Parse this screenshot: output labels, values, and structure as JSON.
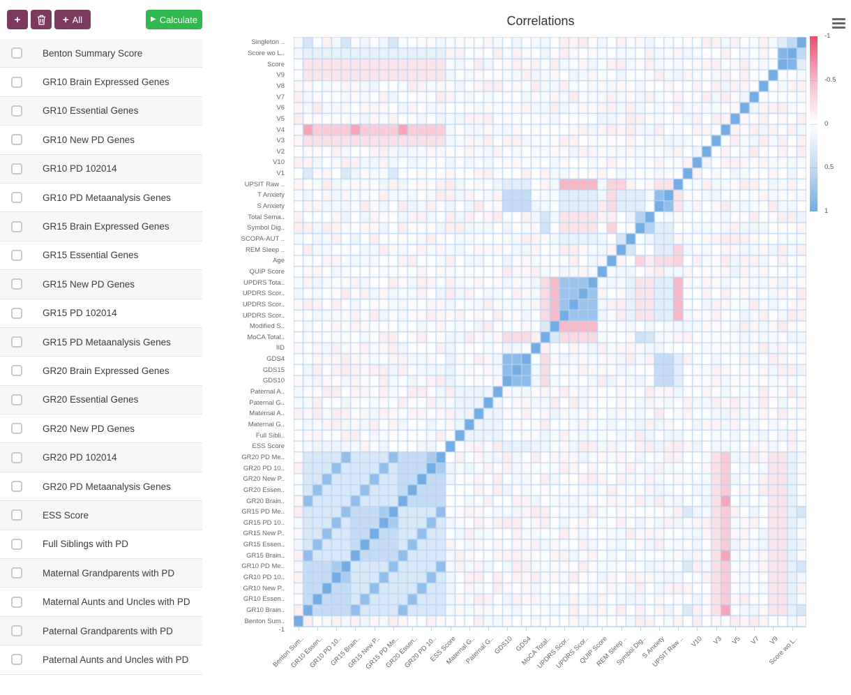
{
  "toolbar": {
    "add_label": "+",
    "add_all_plus": "+",
    "add_all_label": "All",
    "play_icon": "▶",
    "calculate_label": "Calculate",
    "button_color": "#7c3a5e",
    "calculate_color": "#2fb94e"
  },
  "sidebar": {
    "items": [
      {
        "label": "Benton Summary Score",
        "checked": false
      },
      {
        "label": "GR10 Brain Expressed Genes",
        "checked": false
      },
      {
        "label": "GR10 Essential Genes",
        "checked": false
      },
      {
        "label": "GR10 New PD Genes",
        "checked": false
      },
      {
        "label": "GR10 PD 102014",
        "checked": false
      },
      {
        "label": "GR10 PD Metaanalysis Genes",
        "checked": false
      },
      {
        "label": "GR15 Brain Expressed Genes",
        "checked": false
      },
      {
        "label": "GR15 Essential Genes",
        "checked": false
      },
      {
        "label": "GR15 New PD Genes",
        "checked": false
      },
      {
        "label": "GR15 PD 102014",
        "checked": false
      },
      {
        "label": "GR15 PD Metaanalysis Genes",
        "checked": false
      },
      {
        "label": "GR20 Brain Expressed Genes",
        "checked": false
      },
      {
        "label": "GR20 Essential Genes",
        "checked": false
      },
      {
        "label": "GR20 New PD Genes",
        "checked": false
      },
      {
        "label": "GR20 PD 102014",
        "checked": false
      },
      {
        "label": "GR20 PD Metaanalysis Genes",
        "checked": false
      },
      {
        "label": "ESS Score",
        "checked": false
      },
      {
        "label": "Full Siblings with PD",
        "checked": false
      },
      {
        "label": "Maternal Grandparents with PD",
        "checked": false
      },
      {
        "label": "Maternal Aunts and Uncles with PD",
        "checked": false
      },
      {
        "label": "Paternal Grandparents with PD",
        "checked": false
      },
      {
        "label": "Paternal Aunts and Uncles with PD",
        "checked": false
      }
    ]
  },
  "chart": {
    "title": "Correlations",
    "menu_icon": "hamburger-icon",
    "axis_end_label": "-1",
    "colorbar": {
      "labels": [
        "-1",
        "-0.5",
        "0",
        "0.5",
        "1"
      ]
    }
  },
  "chart_data": {
    "type": "heatmap",
    "title": "Correlations",
    "note": "54x54 symmetric correlation matrix; rows top-to-bottom are the reverse of columns left-to-right; diagonal runs from top-right to bottom-left",
    "variables_in_column_order": [
      "Benton Sum..",
      "GR10 Brain..",
      "GR10 Essen..",
      "GR10 New P..",
      "GR10 PD 10..",
      "GR10 PD Me..",
      "GR15 Brain..",
      "GR15 Essen..",
      "GR15 New P..",
      "GR15 PD 10..",
      "GR15 PD Me..",
      "GR20 Brain..",
      "GR20 Essen..",
      "GR20 New P..",
      "GR20 PD 10..",
      "GR20 PD Me..",
      "ESS Score",
      "Full Sibli..",
      "Maternal G..",
      "Maternal A..",
      "Paternal G..",
      "Paternal A..",
      "GDS10",
      "GDS15",
      "GDS4",
      "IID",
      "MoCA Total..",
      "Modified S..",
      "UPDRS Scor..",
      "UPDRS Scor..",
      "UPDRS Scor..",
      "UPDRS Tota..",
      "QUIP Score",
      "Age",
      "REM Sleep ..",
      "SCOPA-AUT ..",
      "Symbol Dig..",
      "Total Sema..",
      "S Anxiety",
      "T Anxiety",
      "UPSIT Raw ..",
      "V1",
      "V10",
      "V2",
      "V3",
      "V4",
      "V5",
      "V6",
      "V7",
      "V8",
      "V9",
      "Score",
      "Score wo L..",
      "Singleton .."
    ],
    "x_tick_every": 2,
    "colorscale": {
      "min": -1,
      "max": 1,
      "min_color": "#ec4a72",
      "zero_color": "#ffffff",
      "max_color": "#74ace4",
      "legend_top_value": -1,
      "legend_bottom_value": 1
    },
    "grid_color": "#b9d3ee",
    "diagonal_value": 1,
    "noise_amplitude": 0.11,
    "structures": [
      {
        "name": "gene-sets-base",
        "rows": [
          2,
          16
        ],
        "cols": [
          2,
          16
        ],
        "v": 0.28
      },
      {
        "name": "gr10-group",
        "rows": [
          2,
          6
        ],
        "cols": [
          2,
          6
        ],
        "v": 0.42
      },
      {
        "name": "gr15-group",
        "rows": [
          7,
          11
        ],
        "cols": [
          7,
          11
        ],
        "v": 0.42
      },
      {
        "name": "gr20-group",
        "rows": [
          12,
          16
        ],
        "cols": [
          12,
          16
        ],
        "v": 0.42
      },
      {
        "name": "same-type-across-levels",
        "pairs": [
          [
            2,
            7
          ],
          [
            7,
            12
          ],
          [
            2,
            12
          ],
          [
            3,
            8
          ],
          [
            8,
            13
          ],
          [
            3,
            13
          ],
          [
            4,
            9
          ],
          [
            9,
            14
          ],
          [
            4,
            14
          ],
          [
            5,
            10
          ],
          [
            10,
            15
          ],
          [
            5,
            15
          ],
          [
            6,
            11
          ],
          [
            11,
            16
          ],
          [
            6,
            16
          ]
        ],
        "v": 0.78
      },
      {
        "name": "pd102014-vs-metaanalysis",
        "pairs": [
          [
            5,
            6
          ],
          [
            10,
            11
          ],
          [
            15,
            16
          ]
        ],
        "v": 0.62
      },
      {
        "name": "gds-block",
        "rows": [
          23,
          25
        ],
        "cols": [
          23,
          25
        ],
        "v": 0.82
      },
      {
        "name": "family-block",
        "rows": [
          18,
          22
        ],
        "cols": [
          18,
          22
        ],
        "v": 0.12
      },
      {
        "name": "updrs-block",
        "rows": [
          29,
          32
        ],
        "cols": [
          29,
          32
        ],
        "v": 0.72
      },
      {
        "name": "updrs-vs-modified-schwab",
        "rows": [
          29,
          32
        ],
        "cols": [
          28,
          28
        ],
        "v": -0.38
      },
      {
        "name": "updrs-vs-moca",
        "rows": [
          29,
          32
        ],
        "cols": [
          27,
          27
        ],
        "v": -0.2
      },
      {
        "name": "moca-vs-modified-schwab",
        "pairs": [
          [
            27,
            28
          ]
        ],
        "v": 0.25
      },
      {
        "name": "anxiety-pair",
        "pairs": [
          [
            39,
            40
          ]
        ],
        "v": 0.8
      },
      {
        "name": "anxiety-vs-gds",
        "rows": [
          39,
          40
        ],
        "cols": [
          23,
          25
        ],
        "v": 0.42
      },
      {
        "name": "anxiety-vs-updrs",
        "rows": [
          39,
          40
        ],
        "cols": [
          29,
          32
        ],
        "v": 0.2
      },
      {
        "name": "anxiety-vs-age",
        "pairs": [
          [
            39,
            34
          ],
          [
            40,
            34
          ]
        ],
        "v": -0.2
      },
      {
        "name": "anxiety-vs-scopa-symbol",
        "rows": [
          39,
          40
        ],
        "cols": [
          36,
          37
        ],
        "v": 0.2
      },
      {
        "name": "upsit-vs-updrs",
        "rows": [
          41,
          41
        ],
        "cols": [
          29,
          32
        ],
        "v": -0.4
      },
      {
        "name": "upsit-vs-age",
        "pairs": [
          [
            41,
            34
          ]
        ],
        "v": -0.25
      },
      {
        "name": "upsit-vs-rem",
        "pairs": [
          [
            41,
            35
          ]
        ],
        "v": -0.25
      },
      {
        "name": "upsit-vs-anxiety",
        "rows": [
          41,
          41
        ],
        "cols": [
          39,
          40
        ],
        "v": -0.15
      },
      {
        "name": "upsit-vs-gds",
        "rows": [
          41,
          41
        ],
        "cols": [
          23,
          25
        ],
        "v": 0.2
      },
      {
        "name": "symbol-vs-sema",
        "pairs": [
          [
            37,
            38
          ]
        ],
        "v": 0.55
      },
      {
        "name": "symbol-vs-moca",
        "pairs": [
          [
            37,
            27
          ]
        ],
        "v": 0.35
      },
      {
        "name": "sema-vs-moca",
        "pairs": [
          [
            38,
            27
          ]
        ],
        "v": 0.3
      },
      {
        "name": "symbol-sema-vs-updrs",
        "rows": [
          37,
          38
        ],
        "cols": [
          29,
          32
        ],
        "v": -0.15
      },
      {
        "name": "symbol-vs-age",
        "pairs": [
          [
            37,
            34
          ]
        ],
        "v": -0.25
      },
      {
        "name": "moca-vs-gds",
        "rows": [
          27,
          27
        ],
        "cols": [
          23,
          25
        ],
        "v": -0.2
      },
      {
        "name": "rem-vs-scopa",
        "pairs": [
          [
            35,
            36
          ]
        ],
        "v": 0.3
      },
      {
        "name": "rem-vs-anxiety",
        "rows": [
          35,
          35
        ],
        "cols": [
          39,
          40
        ],
        "v": 0.2
      },
      {
        "name": "scopa-vs-updrs",
        "rows": [
          36,
          36
        ],
        "cols": [
          29,
          32
        ],
        "v": 0.15
      },
      {
        "name": "gds-vs-ess",
        "rows": [
          23,
          25
        ],
        "cols": [
          17,
          17
        ],
        "v": 0.15
      },
      {
        "name": "v4-vs-brain-genes",
        "pairs": [
          [
            46,
            2
          ],
          [
            46,
            7
          ],
          [
            46,
            12
          ]
        ],
        "v": -0.5
      },
      {
        "name": "v4-vs-other-gene-sets",
        "pairs": [
          [
            46,
            3
          ],
          [
            46,
            4
          ],
          [
            46,
            5
          ],
          [
            46,
            6
          ],
          [
            46,
            8
          ],
          [
            46,
            9
          ],
          [
            46,
            10
          ],
          [
            46,
            11
          ],
          [
            46,
            13
          ],
          [
            46,
            14
          ],
          [
            46,
            15
          ],
          [
            46,
            16
          ]
        ],
        "v": -0.28
      },
      {
        "name": "v3-vs-gene-sets",
        "rows": [
          45,
          45
        ],
        "cols": [
          2,
          16
        ],
        "v": -0.17
      },
      {
        "name": "v9-vs-gene-sets",
        "rows": [
          51,
          51
        ],
        "cols": [
          2,
          16
        ],
        "v": -0.14
      },
      {
        "name": "v1-blues",
        "pairs": [
          [
            42,
            2
          ],
          [
            42,
            6
          ],
          [
            42,
            11
          ]
        ],
        "v": 0.25
      },
      {
        "name": "singleton-blues",
        "pairs": [
          [
            54,
            2
          ],
          [
            54,
            6
          ],
          [
            54,
            11
          ]
        ],
        "v": 0.3
      },
      {
        "name": "gene-sets-vs-score-wo",
        "rows": [
          2,
          16
        ],
        "cols": [
          53,
          53
        ],
        "v": 0.16
      },
      {
        "name": "score-vs-gene-sets",
        "rows": [
          52,
          52
        ],
        "cols": [
          2,
          16
        ],
        "v": -0.15
      },
      {
        "name": "score-vs-score-wo",
        "pairs": [
          [
            52,
            53
          ]
        ],
        "v": 0.9
      },
      {
        "name": "singleton-vs-score-wo",
        "pairs": [
          [
            54,
            53
          ]
        ],
        "v": 0.45
      },
      {
        "name": "singleton-vs-score",
        "pairs": [
          [
            54,
            52
          ]
        ],
        "v": 0.2
      }
    ]
  }
}
